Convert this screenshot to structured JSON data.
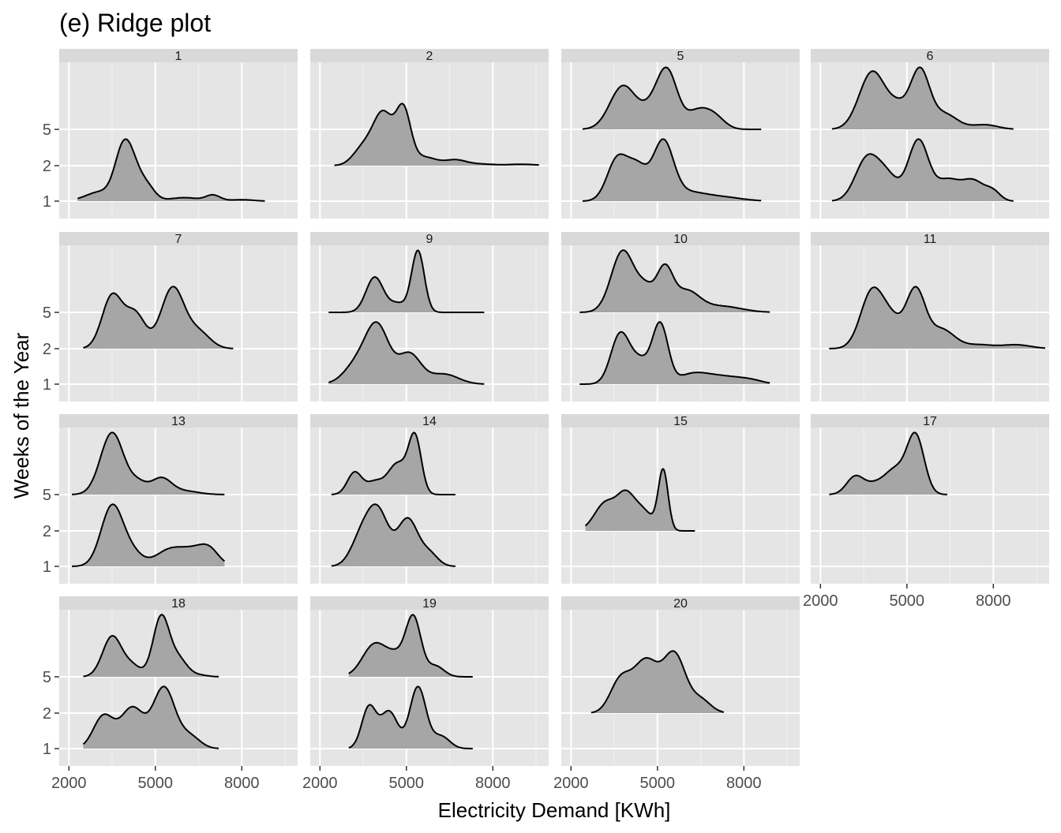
{
  "chart_data": {
    "type": "ridgeline",
    "title": "(e) Ridge plot",
    "xlabel": "Electricity Demand [KWh]",
    "ylabel": "Weeks of the Year",
    "xlim": [
      1800,
      9800
    ],
    "x_ticks": [
      2000,
      5000,
      8000
    ],
    "x_tick_labels": [
      "2000",
      "5000",
      "8000"
    ],
    "y_levels": [
      "1",
      "2",
      "5"
    ],
    "fill_color": "#a6a6a6",
    "line_color": "#000000",
    "panel_background": "#e5e5e5",
    "strip_background": "#d9d9d9",
    "panels": [
      {
        "label": "1",
        "ridges": [
          {
            "level": "1",
            "range": [
              2300,
              8800
            ],
            "peak": 1.75,
            "peaks": [
              [
                3100,
                0.32,
                500
              ],
              [
                3850,
                1.45,
                280
              ],
              [
                4200,
                1.0,
                280
              ],
              [
                4700,
                0.5,
                280
              ],
              [
                6000,
                0.12,
                500
              ],
              [
                7000,
                0.2,
                250
              ],
              [
                8000,
                0.05,
                400
              ]
            ]
          }
        ]
      },
      {
        "label": "2",
        "ridges": [
          {
            "level": "2",
            "range": [
              2500,
              9600
            ],
            "peak": 1.75,
            "peaks": [
              [
                3500,
                0.5,
                350
              ],
              [
                4200,
                1.5,
                350
              ],
              [
                4900,
                1.5,
                250
              ],
              [
                5600,
                0.25,
                450
              ],
              [
                6700,
                0.15,
                350
              ],
              [
                7500,
                0.05,
                500
              ],
              [
                9000,
                0.04,
                500
              ]
            ]
          }
        ]
      },
      {
        "label": "5",
        "ridges": [
          {
            "level": "1",
            "range": [
              2400,
              8600
            ],
            "peak": 1.75,
            "peaks": [
              [
                3600,
                1.0,
                350
              ],
              [
                4300,
                0.8,
                350
              ],
              [
                5200,
                1.4,
                350
              ],
              [
                6000,
                0.2,
                600
              ],
              [
                7200,
                0.1,
                700
              ]
            ]
          },
          {
            "level": "5",
            "range": [
              2400,
              8600
            ],
            "peak": 1.75,
            "peaks": [
              [
                3800,
                1.2,
                450
              ],
              [
                4800,
                0.5,
                400
              ],
              [
                5350,
                1.5,
                350
              ],
              [
                6400,
                0.5,
                400
              ],
              [
                7000,
                0.3,
                350
              ]
            ]
          }
        ]
      },
      {
        "label": "6",
        "ridges": [
          {
            "level": "1",
            "range": [
              2400,
              8700
            ],
            "peak": 1.75,
            "peaks": [
              [
                3600,
                1.0,
                400
              ],
              [
                4300,
                0.6,
                400
              ],
              [
                5400,
                1.5,
                350
              ],
              [
                6400,
                0.5,
                400
              ],
              [
                7300,
                0.5,
                400
              ],
              [
                8000,
                0.2,
                250
              ]
            ]
          },
          {
            "level": "5",
            "range": [
              2400,
              8700
            ],
            "peak": 1.75,
            "peaks": [
              [
                3800,
                1.5,
                450
              ],
              [
                4700,
                0.5,
                350
              ],
              [
                5450,
                1.5,
                330
              ],
              [
                6300,
                0.4,
                450
              ],
              [
                7700,
                0.12,
                450
              ]
            ]
          }
        ]
      },
      {
        "label": "7",
        "ridges": [
          {
            "level": "2",
            "range": [
              2500,
              7700
            ],
            "peak": 1.75,
            "peaks": [
              [
                3500,
                1.3,
                350
              ],
              [
                4300,
                0.85,
                350
              ],
              [
                5600,
                1.5,
                400
              ],
              [
                6500,
                0.4,
                400
              ]
            ]
          }
        ]
      },
      {
        "label": "9",
        "ridges": [
          {
            "level": "1",
            "range": [
              2300,
              7700
            ],
            "peak": 1.75,
            "peaks": [
              [
                3300,
                0.4,
                450
              ],
              [
                4000,
                1.1,
                400
              ],
              [
                5100,
                0.6,
                400
              ],
              [
                6300,
                0.2,
                500
              ]
            ]
          },
          {
            "level": "5",
            "range": [
              2300,
              7700
            ],
            "peak": 1.75,
            "peaks": [
              [
                3900,
                1.0,
                300
              ],
              [
                5400,
                1.75,
                220
              ],
              [
                4700,
                0.25,
                300
              ]
            ]
          }
        ]
      },
      {
        "label": "10",
        "ridges": [
          {
            "level": "1",
            "range": [
              2300,
              8900
            ],
            "peak": 1.75,
            "peaks": [
              [
                3700,
                1.3,
                320
              ],
              [
                4400,
                0.6,
                350
              ],
              [
                5100,
                1.55,
                270
              ],
              [
                6200,
                0.25,
                500
              ],
              [
                7200,
                0.2,
                600
              ],
              [
                8200,
                0.1,
                450
              ]
            ]
          },
          {
            "level": "5",
            "range": [
              2300,
              8900
            ],
            "peak": 1.75,
            "peaks": [
              [
                3800,
                1.5,
                400
              ],
              [
                4600,
                0.5,
                300
              ],
              [
                5250,
                1.0,
                280
              ],
              [
                6000,
                0.5,
                450
              ],
              [
                7200,
                0.15,
                700
              ]
            ]
          }
        ]
      },
      {
        "label": "11",
        "ridges": [
          {
            "level": "2",
            "range": [
              2300,
              9800
            ],
            "peak": 1.75,
            "peaks": [
              [
                3800,
                1.5,
                400
              ],
              [
                4500,
                0.6,
                350
              ],
              [
                5300,
                1.5,
                330
              ],
              [
                6200,
                0.5,
                450
              ],
              [
                7500,
                0.1,
                500
              ],
              [
                8800,
                0.1,
                500
              ]
            ]
          }
        ]
      },
      {
        "label": "13",
        "ridges": [
          {
            "level": "1",
            "range": [
              2100,
              7400
            ],
            "peak": 1.75,
            "peaks": [
              [
                3500,
                1.5,
                380
              ],
              [
                4200,
                0.3,
                350
              ],
              [
                5500,
                0.4,
                500
              ],
              [
                6500,
                0.4,
                500
              ],
              [
                6900,
                0.2,
                300
              ]
            ]
          },
          {
            "level": "5",
            "range": [
              2100,
              7400
            ],
            "peak": 1.75,
            "peaks": [
              [
                3500,
                1.75,
                400
              ],
              [
                4400,
                0.3,
                300
              ],
              [
                5200,
                0.45,
                350
              ],
              [
                6000,
                0.1,
                500
              ]
            ]
          }
        ]
      },
      {
        "label": "14",
        "ridges": [
          {
            "level": "1",
            "range": [
              2400,
              6700
            ],
            "peak": 1.75,
            "peaks": [
              [
                3400,
                0.6,
                350
              ],
              [
                4000,
                1.35,
                380
              ],
              [
                5050,
                1.15,
                350
              ],
              [
                5800,
                0.3,
                300
              ]
            ]
          },
          {
            "level": "5",
            "range": [
              2400,
              6700
            ],
            "peak": 1.75,
            "peaks": [
              [
                3200,
                0.7,
                250
              ],
              [
                3900,
                0.4,
                300
              ],
              [
                4600,
                0.7,
                300
              ],
              [
                5300,
                1.75,
                220
              ],
              [
                4900,
                0.4,
                300
              ]
            ]
          }
        ]
      },
      {
        "label": "15",
        "ridges": [
          {
            "level": "2",
            "range": [
              2500,
              6300
            ],
            "peak": 1.75,
            "peaks": [
              [
                3200,
                0.7,
                380
              ],
              [
                3900,
                0.8,
                300
              ],
              [
                4400,
                0.35,
                300
              ],
              [
                5200,
                1.5,
                170
              ],
              [
                4700,
                0.2,
                300
              ]
            ]
          }
        ]
      },
      {
        "label": "17",
        "ridges": [
          {
            "level": "5",
            "range": [
              2300,
              6400
            ],
            "peak": 1.75,
            "peaks": [
              [
                3200,
                0.45,
                300
              ],
              [
                3900,
                0.25,
                350
              ],
              [
                4600,
                0.6,
                350
              ],
              [
                5300,
                1.5,
                300
              ]
            ]
          }
        ]
      },
      {
        "label": "18",
        "ridges": [
          {
            "level": "1",
            "range": [
              2500,
              7200
            ],
            "peak": 1.75,
            "peaks": [
              [
                3200,
                0.8,
                350
              ],
              [
                4200,
                1.0,
                400
              ],
              [
                5300,
                1.5,
                380
              ],
              [
                6200,
                0.3,
                350
              ]
            ]
          },
          {
            "level": "5",
            "range": [
              2500,
              7200
            ],
            "peak": 1.75,
            "peaks": [
              [
                3500,
                1.15,
                330
              ],
              [
                4200,
                0.3,
                300
              ],
              [
                5200,
                1.7,
                280
              ],
              [
                5800,
                0.5,
                300
              ],
              [
                6500,
                0.05,
                300
              ]
            ]
          }
        ]
      },
      {
        "label": "19",
        "ridges": [
          {
            "level": "1",
            "range": [
              3000,
              7300
            ],
            "peak": 1.75,
            "peaks": [
              [
                3700,
                1.0,
                250
              ],
              [
                4400,
                0.9,
                300
              ],
              [
                5400,
                1.5,
                280
              ],
              [
                6200,
                0.3,
                300
              ]
            ]
          },
          {
            "level": "5",
            "range": [
              3000,
              7300
            ],
            "peak": 1.75,
            "peaks": [
              [
                3900,
                0.9,
                420
              ],
              [
                4700,
                0.5,
                350
              ],
              [
                5250,
                1.55,
                260
              ],
              [
                6000,
                0.3,
                300
              ]
            ]
          }
        ]
      },
      {
        "label": "20",
        "ridges": [
          {
            "level": "2",
            "range": [
              2700,
              7300
            ],
            "peak": 1.75,
            "peaks": [
              [
                3700,
                0.7,
                350
              ],
              [
                4600,
                1.2,
                450
              ],
              [
                5600,
                1.3,
                380
              ],
              [
                6500,
                0.3,
                350
              ]
            ]
          }
        ]
      }
    ]
  }
}
